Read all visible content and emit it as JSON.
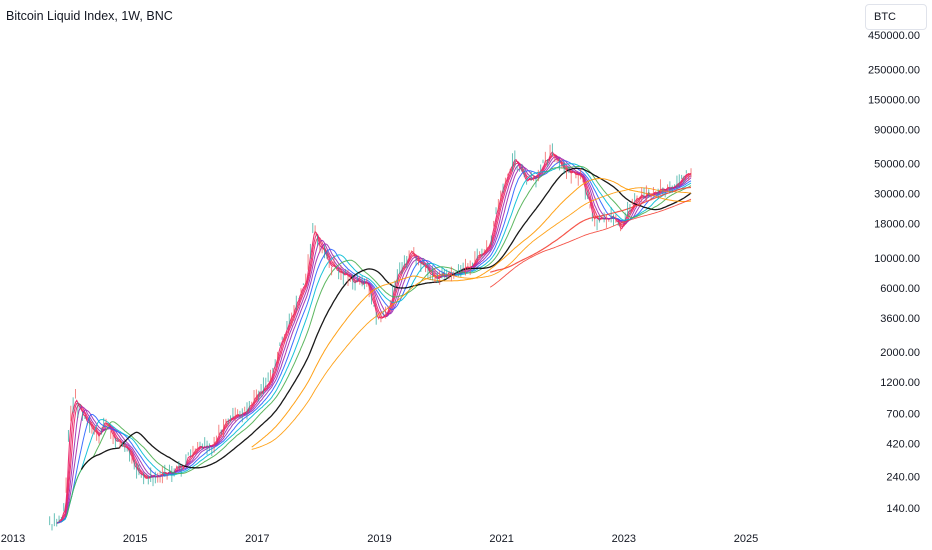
{
  "header": {
    "title": "Bitcoin Liquid Index, 1W, BNC",
    "symbol_input_value": "BTC"
  },
  "chart_data": {
    "type": "line",
    "title": "Bitcoin Liquid Index, 1W, BNC",
    "y_scale": "log",
    "ylim": [
      110,
      480000
    ],
    "xlim": [
      "2013-01",
      "2025-12"
    ],
    "y_ticks": [
      "450000.00",
      "250000.00",
      "150000.00",
      "90000.00",
      "50000.00",
      "30000.00",
      "18000.00",
      "10000.00",
      "6000.00",
      "3600.00",
      "2000.00",
      "1200.00",
      "700.00",
      "420.00",
      "240.00",
      "140.00"
    ],
    "x_ticks": [
      "2013",
      "2015",
      "2017",
      "2019",
      "2021",
      "2023",
      "2025"
    ],
    "grid": false,
    "price": {
      "x": [
        2013.75,
        2013.85,
        2013.92,
        2014.0,
        2014.2,
        2014.4,
        2014.5,
        2014.7,
        2014.9,
        2015.05,
        2015.3,
        2015.6,
        2015.8,
        2016.0,
        2016.3,
        2016.5,
        2016.8,
        2017.0,
        2017.2,
        2017.4,
        2017.6,
        2017.8,
        2017.92,
        2018.0,
        2018.2,
        2018.5,
        2018.8,
        2018.95,
        2019.1,
        2019.3,
        2019.5,
        2019.7,
        2019.9,
        2020.2,
        2020.5,
        2020.8,
        2021.0,
        2021.2,
        2021.4,
        2021.6,
        2021.8,
        2022.0,
        2022.3,
        2022.5,
        2022.8,
        2022.95,
        2023.2,
        2023.5,
        2023.8,
        2024.0,
        2024.1
      ],
      "y": [
        110,
        140,
        600,
        900,
        620,
        480,
        620,
        440,
        370,
        240,
        240,
        260,
        300,
        400,
        420,
        650,
        700,
        950,
        1200,
        2500,
        4200,
        7000,
        17000,
        13000,
        9000,
        7000,
        6400,
        3600,
        3700,
        7500,
        11000,
        9000,
        7300,
        7500,
        9000,
        13000,
        32000,
        55000,
        38000,
        42000,
        60000,
        47000,
        40000,
        20000,
        20000,
        16800,
        28000,
        30000,
        34000,
        42000,
        45000
      ]
    },
    "series": [
      {
        "color": "#e91e63",
        "role": "fast moving averages"
      },
      {
        "color": "#9c27b0",
        "role": "medium moving averages"
      },
      {
        "color": "#2962ff",
        "role": "medium-slow moving average"
      },
      {
        "color": "#00bcd4",
        "role": "slow moving average"
      },
      {
        "color": "#4caf50",
        "role": "slow moving average"
      },
      {
        "color": "#000000",
        "role": "long moving average"
      },
      {
        "color": "#ff9800",
        "role": "very long moving average"
      },
      {
        "color": "#f44336",
        "role": "longest moving average"
      }
    ]
  }
}
